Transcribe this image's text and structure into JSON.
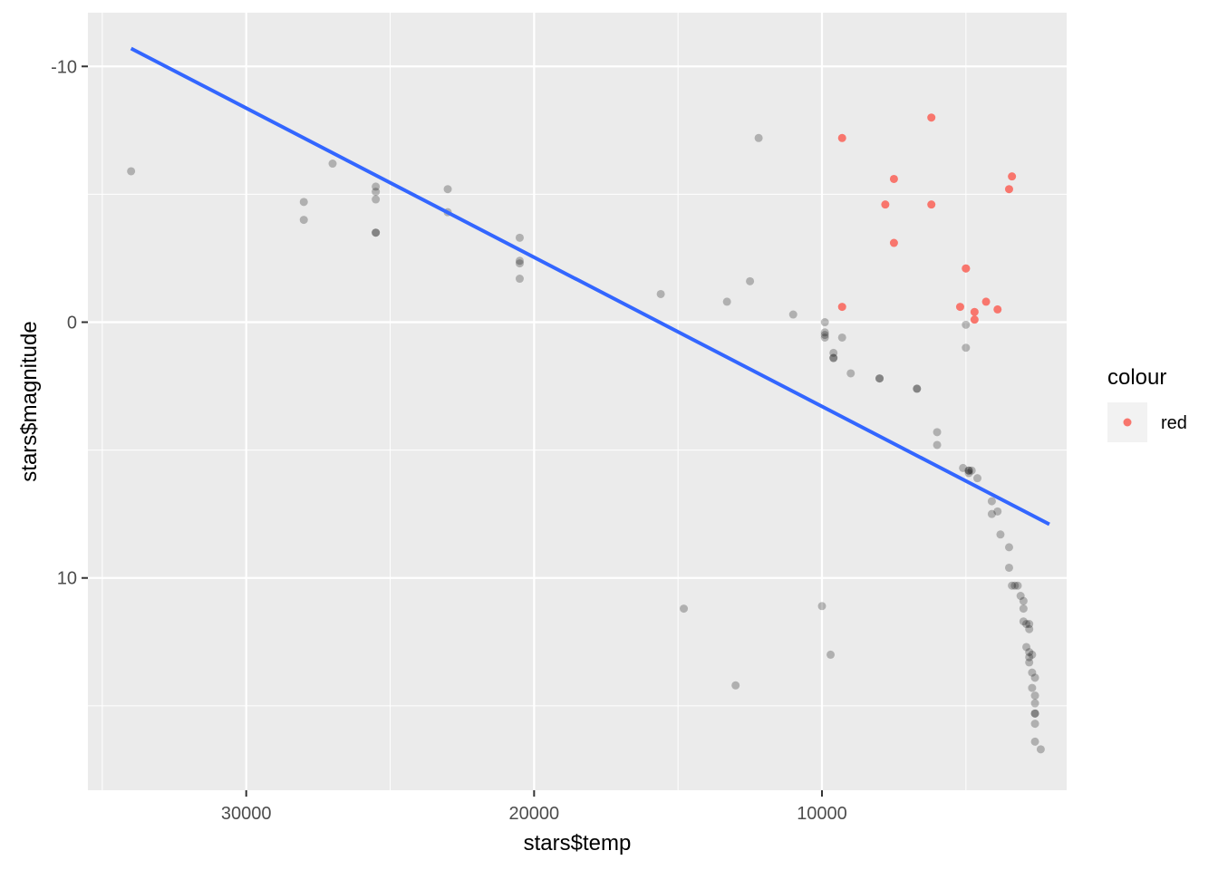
{
  "chart_data": {
    "type": "scatter",
    "title": "",
    "xlabel": "stars$temp",
    "ylabel": "stars$magnitude",
    "x_reversed": true,
    "y_reversed": true,
    "xlim": [
      35500,
      1500
    ],
    "ylim": [
      -12.1,
      18.3
    ],
    "x_ticks": [
      30000,
      20000,
      10000
    ],
    "x_tick_labels": [
      "30000",
      "20000",
      "10000"
    ],
    "y_ticks": [
      -10,
      0,
      10
    ],
    "y_tick_labels": [
      "-10",
      "0",
      "10"
    ],
    "grid": true,
    "legend": {
      "title": "colour",
      "entries": [
        {
          "label": "red",
          "color": "#F8766D"
        }
      ],
      "position": "right"
    },
    "colors": {
      "panel": "#EBEBEB",
      "grid": "#FFFFFF",
      "points_black": "#000000",
      "points_red": "#F8766D",
      "fit_line": "#3366FF"
    },
    "fit_line": {
      "x": [
        34000,
        2100
      ],
      "y": [
        -10.7,
        7.9
      ]
    },
    "series": [
      {
        "color": "black",
        "alpha": 0.25,
        "points": [
          [
            34000,
            -5.9
          ],
          [
            28000,
            -4.7
          ],
          [
            28000,
            -4.0
          ],
          [
            27000,
            -6.2
          ],
          [
            25500,
            -5.3
          ],
          [
            25500,
            -5.1
          ],
          [
            25500,
            -4.8
          ],
          [
            25500,
            -3.5
          ],
          [
            25500,
            -3.5
          ],
          [
            23000,
            -5.2
          ],
          [
            23000,
            -4.3
          ],
          [
            20500,
            -3.3
          ],
          [
            20500,
            -2.4
          ],
          [
            20500,
            -2.3
          ],
          [
            20500,
            -1.7
          ],
          [
            15600,
            -1.1
          ],
          [
            14800,
            11.2
          ],
          [
            13300,
            -0.8
          ],
          [
            13000,
            14.2
          ],
          [
            12500,
            -1.6
          ],
          [
            12200,
            -7.2
          ],
          [
            11000,
            -0.3
          ],
          [
            10000,
            11.1
          ],
          [
            9900,
            0.0
          ],
          [
            9900,
            0.4
          ],
          [
            9900,
            0.5
          ],
          [
            9900,
            0.6
          ],
          [
            9700,
            13.0
          ],
          [
            9600,
            1.2
          ],
          [
            9600,
            1.4
          ],
          [
            9600,
            1.4
          ],
          [
            9300,
            0.6
          ],
          [
            9000,
            2.0
          ],
          [
            8000,
            2.2
          ],
          [
            8000,
            2.2
          ],
          [
            6700,
            2.6
          ],
          [
            6700,
            2.6
          ],
          [
            6000,
            4.3
          ],
          [
            6000,
            4.8
          ],
          [
            5100,
            5.7
          ],
          [
            4900,
            5.8
          ],
          [
            4900,
            5.8
          ],
          [
            4900,
            5.9
          ],
          [
            4800,
            5.8
          ],
          [
            4600,
            6.1
          ],
          [
            5000,
            0.1
          ],
          [
            5000,
            1.0
          ],
          [
            4100,
            7.0
          ],
          [
            3900,
            7.4
          ],
          [
            4100,
            7.5
          ],
          [
            3800,
            8.3
          ],
          [
            3500,
            8.8
          ],
          [
            3500,
            9.6
          ],
          [
            3400,
            10.3
          ],
          [
            3300,
            10.3
          ],
          [
            3200,
            10.3
          ],
          [
            3100,
            10.7
          ],
          [
            3000,
            10.9
          ],
          [
            3000,
            11.2
          ],
          [
            3000,
            11.7
          ],
          [
            2900,
            11.8
          ],
          [
            2800,
            11.8
          ],
          [
            2800,
            12.0
          ],
          [
            2900,
            12.7
          ],
          [
            2800,
            12.9
          ],
          [
            2700,
            13.0
          ],
          [
            2800,
            13.3
          ],
          [
            2800,
            13.1
          ],
          [
            2700,
            13.7
          ],
          [
            2600,
            13.9
          ],
          [
            2700,
            14.3
          ],
          [
            2600,
            14.6
          ],
          [
            2600,
            14.9
          ],
          [
            2600,
            15.3
          ],
          [
            2600,
            15.3
          ],
          [
            2600,
            15.7
          ],
          [
            2600,
            16.4
          ],
          [
            2400,
            16.7
          ]
        ]
      },
      {
        "name": "red",
        "color": "#F8766D",
        "alpha": 1.0,
        "points": [
          [
            9300,
            -7.2
          ],
          [
            9300,
            -0.6
          ],
          [
            7800,
            -4.6
          ],
          [
            7500,
            -5.6
          ],
          [
            7500,
            -3.1
          ],
          [
            6200,
            -8.0
          ],
          [
            6200,
            -4.6
          ],
          [
            5000,
            -2.1
          ],
          [
            5000,
            -2.1
          ],
          [
            5200,
            -0.6
          ],
          [
            4700,
            -0.4
          ],
          [
            4700,
            -0.1
          ],
          [
            4300,
            -0.8
          ],
          [
            3900,
            -0.5
          ],
          [
            3500,
            -5.2
          ],
          [
            3400,
            -5.7
          ]
        ]
      }
    ]
  }
}
